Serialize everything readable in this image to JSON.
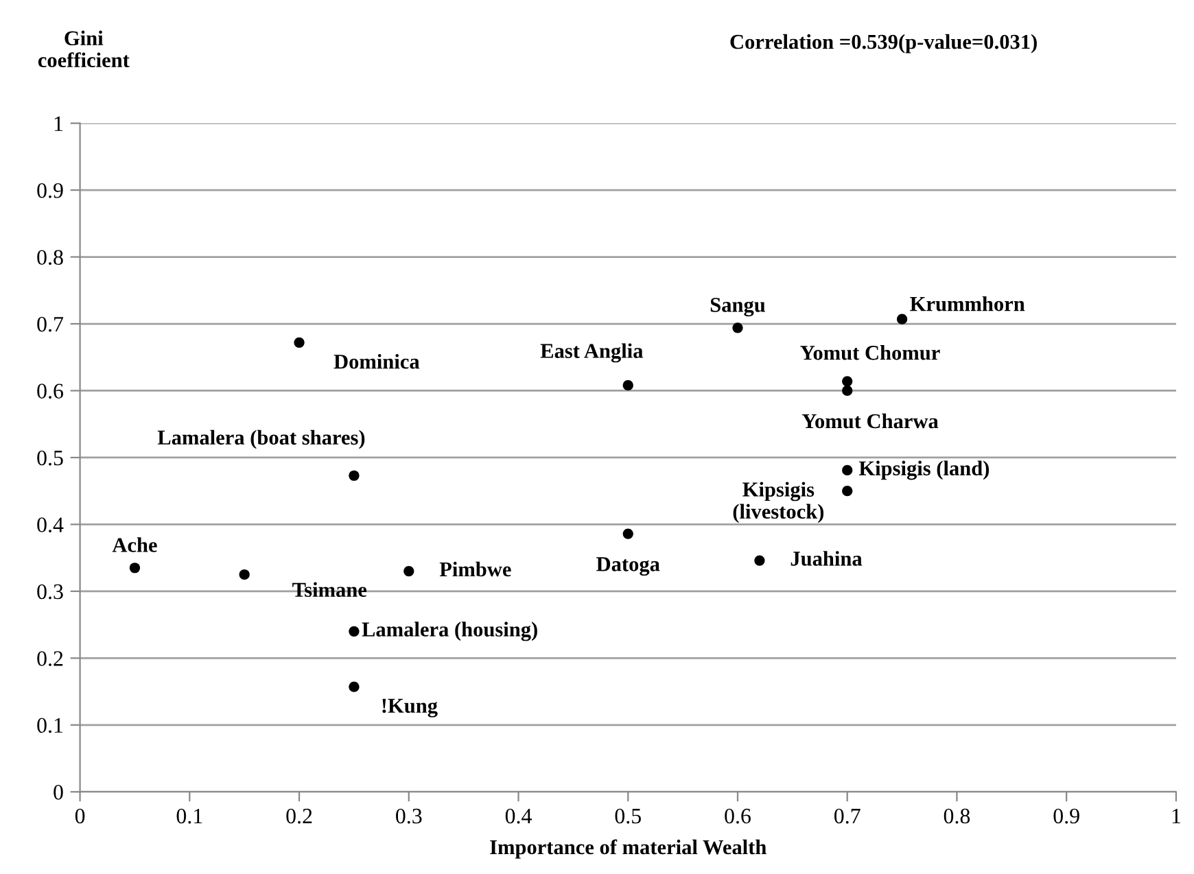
{
  "chart_data": {
    "type": "scatter",
    "xlabel": "Importance of material Wealth",
    "ylabel": "Gini\ncoefficient",
    "x": [
      0.05,
      0.15,
      0.2,
      0.25,
      0.25,
      0.25,
      0.3,
      0.5,
      0.5,
      0.6,
      0.62,
      0.7,
      0.7,
      0.7,
      0.7,
      0.75
    ],
    "values": [
      0.335,
      0.325,
      0.672,
      0.473,
      0.24,
      0.157,
      0.33,
      0.608,
      0.386,
      0.694,
      0.346,
      0.614,
      0.6,
      0.481,
      0.45,
      0.707
    ],
    "color": "#000000",
    "marker": "circle",
    "grid": "y",
    "xlim": [
      0,
      1
    ],
    "xticks": [
      0,
      0.1,
      0.2,
      0.3,
      0.4,
      0.5,
      0.6,
      0.7,
      0.8,
      0.9,
      1
    ],
    "ylim": [
      0,
      1
    ],
    "yticks": [
      0,
      0.1,
      0.2,
      0.3,
      0.4,
      0.5,
      0.6,
      0.7,
      0.8,
      0.9,
      1
    ],
    "annotations": [
      {
        "text": "Ache",
        "x": 0.05,
        "y": 0.335
      },
      {
        "text": "Tsimane",
        "x": 0.15,
        "y": 0.325
      },
      {
        "text": "Dominica",
        "x": 0.2,
        "y": 0.672
      },
      {
        "text": "Lamalera (boat shares)",
        "x": 0.25,
        "y": 0.473
      },
      {
        "text": "Lamalera (housing)",
        "x": 0.25,
        "y": 0.24
      },
      {
        "text": "!Kung",
        "x": 0.25,
        "y": 0.157
      },
      {
        "text": "Pimbwe",
        "x": 0.3,
        "y": 0.33
      },
      {
        "text": "East Anglia",
        "x": 0.5,
        "y": 0.608
      },
      {
        "text": "Datoga",
        "x": 0.5,
        "y": 0.386
      },
      {
        "text": "Sangu",
        "x": 0.6,
        "y": 0.694
      },
      {
        "text": "Juahina",
        "x": 0.62,
        "y": 0.346
      },
      {
        "text": "Yomut Chomur",
        "x": 0.7,
        "y": 0.614
      },
      {
        "text": "Yomut Charwa",
        "x": 0.7,
        "y": 0.6
      },
      {
        "text": "Kipsigis (land)",
        "x": 0.7,
        "y": 0.481
      },
      {
        "text": "Kipsigis\n(livestock)",
        "x": 0.7,
        "y": 0.45
      },
      {
        "text": "Krummhorn",
        "x": 0.75,
        "y": 0.707
      },
      "Correlation =0.539(p-value=0.031)"
    ]
  }
}
